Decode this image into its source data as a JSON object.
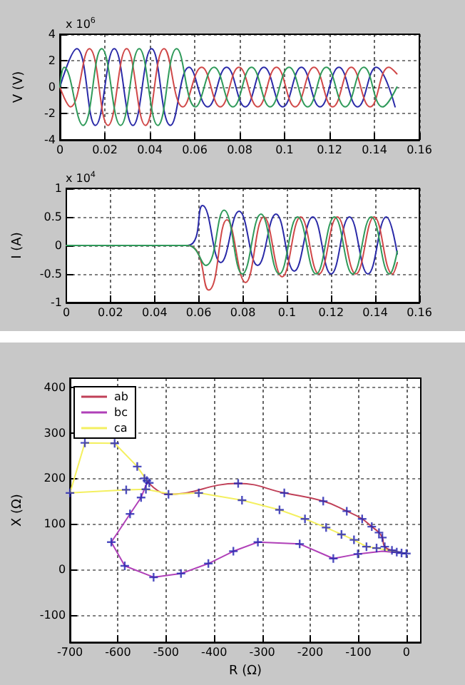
{
  "chart_data": [
    {
      "type": "line",
      "ylabel": "V (V)",
      "annotations": [
        "x 10$^{6}$"
      ],
      "xlim": [
        0,
        0.16
      ],
      "xticks": [
        0,
        0.02,
        0.04,
        0.06,
        0.08,
        0.1,
        0.12,
        0.14,
        0.16
      ],
      "ylim": [
        -4,
        4
      ],
      "yticks": [
        -4,
        -2,
        0,
        2,
        4
      ],
      "grid": true,
      "marker": "none",
      "line_style": "solid",
      "series": [
        {
          "color": "#2a2aa8",
          "x": [
            0,
            0.0075,
            0.0158,
            0.0242,
            0.0325,
            0.0408,
            0.0492,
            0.0575,
            0.0658,
            0.0742,
            0.0825,
            0.0908,
            0.0992,
            0.1075,
            0.1158,
            0.1242,
            0.1325,
            0.1408,
            0.1492
          ],
          "values": [
            0,
            2.9,
            -2.9,
            2.9,
            -2.9,
            2.9,
            -2.9,
            1.5,
            -1.5,
            1.5,
            -1.5,
            1.5,
            -1.5,
            1.5,
            -1.5,
            1.5,
            -1.5,
            1.5,
            -1.5
          ]
        },
        {
          "color": "#d04848",
          "x": [
            0,
            0.0047,
            0.0131,
            0.0214,
            0.0297,
            0.0381,
            0.0464,
            0.0547,
            0.0631,
            0.0714,
            0.0797,
            0.0881,
            0.0964,
            0.1047,
            0.1131,
            0.1214,
            0.1297,
            0.1381,
            0.1464,
            0.15
          ],
          "values": [
            0,
            -1.5,
            2.9,
            -2.9,
            2.9,
            -2.9,
            2.9,
            -1.5,
            1.5,
            -1.5,
            1.5,
            -1.5,
            1.5,
            -1.5,
            1.5,
            -1.5,
            1.5,
            -1.5,
            1.5,
            1
          ]
        },
        {
          "color": "#2f9a5a",
          "x": [
            0,
            0.0019,
            0.0103,
            0.0186,
            0.027,
            0.0353,
            0.0436,
            0.052,
            0.0603,
            0.0686,
            0.077,
            0.0853,
            0.0936,
            0.102,
            0.1103,
            0.1186,
            0.127,
            0.1353,
            0.1436,
            0.15
          ],
          "values": [
            0,
            1.5,
            -2.9,
            2.9,
            -2.9,
            2.9,
            -2.9,
            2.9,
            -1.5,
            1.5,
            -1.5,
            1.5,
            -1.5,
            1.5,
            -1.5,
            1.5,
            -1.5,
            1.5,
            -1.5,
            0
          ]
        }
      ]
    },
    {
      "type": "line",
      "ylabel": "I (A)",
      "annotations": [
        "x 10$^{4}$"
      ],
      "xlim": [
        0,
        0.16
      ],
      "xticks": [
        0,
        0.02,
        0.04,
        0.06,
        0.08,
        0.1,
        0.12,
        0.14,
        0.16
      ],
      "ylim": [
        -1,
        1
      ],
      "yticks": [
        -1,
        -0.5,
        0,
        0.5,
        1
      ],
      "grid": true,
      "marker": "none",
      "line_style": "solid",
      "series": [
        {
          "color": "#2a2aa8",
          "x": [
            0,
            0.055,
            0.0617,
            0.07,
            0.0783,
            0.0867,
            0.095,
            0.1033,
            0.1117,
            0.12,
            0.1283,
            0.1367,
            0.145,
            0.15
          ],
          "values": [
            0,
            0,
            0.7,
            -0.3,
            0.6,
            -0.35,
            0.55,
            -0.45,
            0.5,
            -0.5,
            0.5,
            -0.5,
            0.5,
            -0.15
          ]
        },
        {
          "color": "#d04848",
          "x": [
            0,
            0.055,
            0.0645,
            0.0728,
            0.0812,
            0.0895,
            0.0978,
            0.1062,
            0.1145,
            0.1228,
            0.1312,
            0.1395,
            0.1478,
            0.15
          ],
          "values": [
            0,
            0,
            -0.78,
            0.45,
            -0.65,
            0.5,
            -0.55,
            0.5,
            -0.5,
            0.5,
            -0.5,
            0.5,
            -0.5,
            -0.3
          ]
        },
        {
          "color": "#2f9a5a",
          "x": [
            0,
            0.055,
            0.0632,
            0.0715,
            0.0798,
            0.0882,
            0.0965,
            0.1048,
            0.1132,
            0.1215,
            0.1298,
            0.1382,
            0.1465,
            0.15
          ],
          "values": [
            0,
            0,
            -0.35,
            0.62,
            -0.5,
            0.55,
            -0.5,
            0.5,
            -0.5,
            0.5,
            -0.5,
            0.5,
            -0.5,
            -0.1
          ]
        }
      ]
    },
    {
      "type": "line",
      "xlabel": "R (Ω)",
      "ylabel": "X (Ω)",
      "xlim": [
        -700,
        30
      ],
      "xticks": [
        -700,
        -600,
        -500,
        -400,
        -300,
        -200,
        -100,
        0
      ],
      "ylim": [
        -160,
        420
      ],
      "yticks": [
        -100,
        0,
        100,
        200,
        300,
        400
      ],
      "grid": true,
      "legend": "top left",
      "marker": "none",
      "line_style": "solid",
      "series": [
        {
          "name": "ab",
          "color": "#c04058",
          "x": [
            -540,
            -495,
            -350,
            -254,
            -173,
            -124,
            -92,
            -72,
            -57,
            -50,
            -45,
            -30,
            0
          ],
          "values": [
            195,
            165,
            189,
            168,
            150,
            128,
            111,
            94,
            81,
            70,
            50,
            42,
            35
          ]
        },
        {
          "name": "bc",
          "color": "#b040b8",
          "x": [
            -540,
            -552,
            -575,
            -614,
            -586,
            -526,
            -469,
            -412,
            -360,
            -309,
            -222,
            -152,
            -101,
            -50,
            0
          ],
          "values": [
            190,
            158,
            122,
            60,
            8,
            -17,
            -9,
            13,
            40,
            60,
            56,
            24,
            34,
            40,
            35
          ]
        },
        {
          "name": "ca",
          "color": "#f4f060",
          "x": [
            -540,
            -560,
            -607,
            -669,
            -700,
            -583,
            -542,
            -488,
            -432,
            -342,
            -264,
            -211,
            -167,
            -135,
            -109,
            -83,
            -62,
            -30,
            0
          ],
          "values": [
            195,
            226,
            277,
            278,
            168,
            175,
            176,
            165,
            168,
            152,
            131,
            111,
            92,
            77,
            65,
            50,
            47,
            40,
            35
          ]
        },
        {
          "type": "scatter",
          "marker": "cross",
          "color": "#2222b0",
          "x": [
            -545,
            -535,
            -540,
            -495,
            -350,
            -254,
            -173,
            -124,
            -92,
            -72,
            -57,
            -50,
            -45,
            -30,
            -20,
            -10,
            0,
            -552,
            -575,
            -614,
            -586,
            -526,
            -469,
            -412,
            -360,
            -309,
            -222,
            -152,
            -101,
            -560,
            -607,
            -669,
            -700,
            -583,
            -542,
            -432,
            -342,
            -264,
            -211,
            -167,
            -135,
            -109,
            -83,
            -62
          ],
          "values": [
            200,
            190,
            195,
            165,
            189,
            168,
            150,
            128,
            111,
            94,
            81,
            70,
            50,
            42,
            38,
            36,
            35,
            158,
            122,
            60,
            8,
            -17,
            -9,
            13,
            40,
            60,
            56,
            24,
            34,
            226,
            277,
            278,
            168,
            175,
            176,
            168,
            152,
            131,
            111,
            92,
            77,
            65,
            50,
            47
          ]
        }
      ]
    }
  ]
}
